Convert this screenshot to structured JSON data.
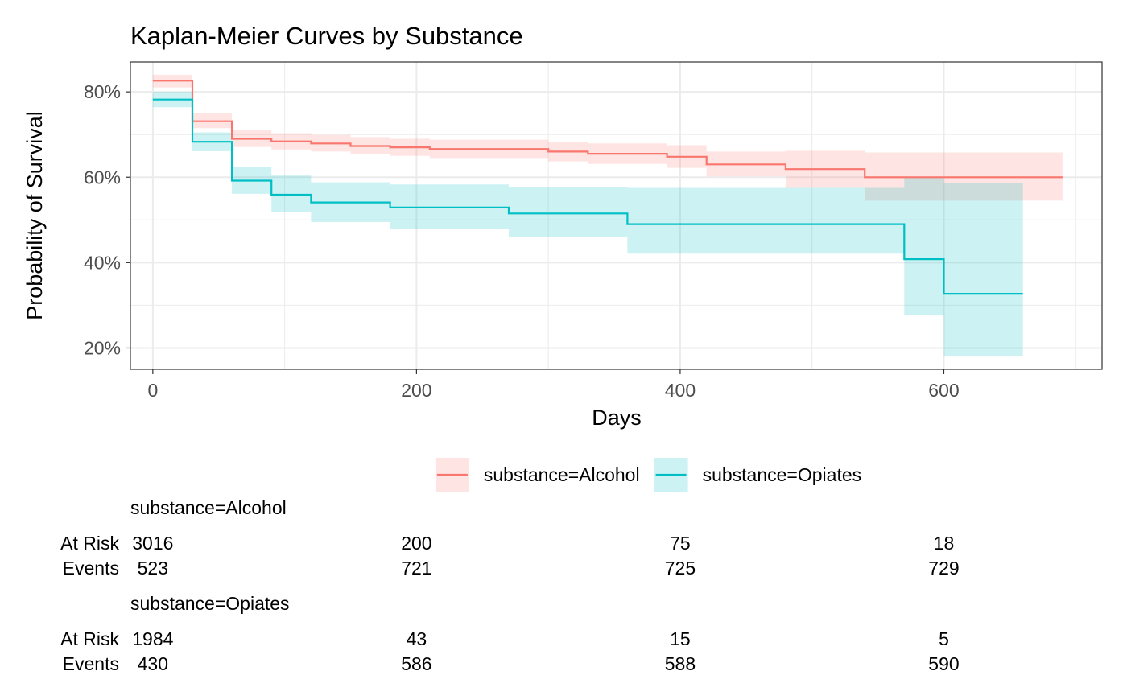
{
  "chart_data": {
    "type": "line",
    "title": "Kaplan-Meier Curves by Substance",
    "xlabel": "Days",
    "ylabel": "Probability of Survival",
    "xlim": [
      -17,
      720
    ],
    "ylim": [
      0.15,
      0.87
    ],
    "x_ticks": [
      0,
      200,
      400,
      600
    ],
    "x_tick_labels": [
      "0",
      "200",
      "400",
      "600"
    ],
    "y_ticks": [
      0.2,
      0.4,
      0.6,
      0.8
    ],
    "y_tick_labels": [
      "20%",
      "40%",
      "60%",
      "80%"
    ],
    "grid": true,
    "step": true,
    "legend_position": "bottom",
    "series": [
      {
        "name": "substance=Alcohol",
        "color": "#F8766D",
        "fill": "#F8766D",
        "x": [
          0,
          30,
          60,
          90,
          120,
          150,
          180,
          210,
          300,
          330,
          390,
          420,
          480,
          540,
          690
        ],
        "y": [
          0.826,
          0.731,
          0.69,
          0.684,
          0.679,
          0.673,
          0.67,
          0.666,
          0.66,
          0.655,
          0.648,
          0.63,
          0.619,
          0.6,
          0.6
        ],
        "lower": [
          0.81,
          0.715,
          0.671,
          0.665,
          0.66,
          0.654,
          0.65,
          0.645,
          0.637,
          0.631,
          0.622,
          0.602,
          0.575,
          0.545,
          0.545
        ],
        "upper": [
          0.84,
          0.75,
          0.71,
          0.703,
          0.699,
          0.694,
          0.69,
          0.688,
          0.683,
          0.679,
          0.675,
          0.66,
          0.662,
          0.658,
          0.658
        ]
      },
      {
        "name": "substance=Opiates",
        "color": "#00BFC4",
        "fill": "#00BFC4",
        "x": [
          0,
          30,
          60,
          90,
          120,
          180,
          270,
          360,
          570,
          600,
          660
        ],
        "y": [
          0.782,
          0.683,
          0.592,
          0.559,
          0.541,
          0.529,
          0.515,
          0.49,
          0.408,
          0.327,
          0.327
        ],
        "lower": [
          0.764,
          0.661,
          0.561,
          0.518,
          0.495,
          0.478,
          0.46,
          0.421,
          0.276,
          0.18,
          0.18
        ],
        "upper": [
          0.8,
          0.705,
          0.623,
          0.604,
          0.588,
          0.583,
          0.576,
          0.575,
          0.598,
          0.586,
          0.586
        ]
      }
    ]
  },
  "legend": {
    "items": [
      {
        "label": "substance=Alcohol",
        "color": "#F8766D"
      },
      {
        "label": "substance=Opiates",
        "color": "#00BFC4"
      }
    ]
  },
  "risk_table": {
    "time_points": [
      0,
      200,
      400,
      600
    ],
    "row_labels": {
      "at_risk": "At Risk",
      "events": "Events"
    },
    "groups": [
      {
        "label": "substance=Alcohol",
        "at_risk": [
          "3016",
          "200",
          "75",
          "18"
        ],
        "events": [
          "523",
          "721",
          "725",
          "729"
        ]
      },
      {
        "label": "substance=Opiates",
        "at_risk": [
          "1984",
          "43",
          "15",
          "5"
        ],
        "events": [
          "430",
          "586",
          "588",
          "590"
        ]
      }
    ]
  }
}
